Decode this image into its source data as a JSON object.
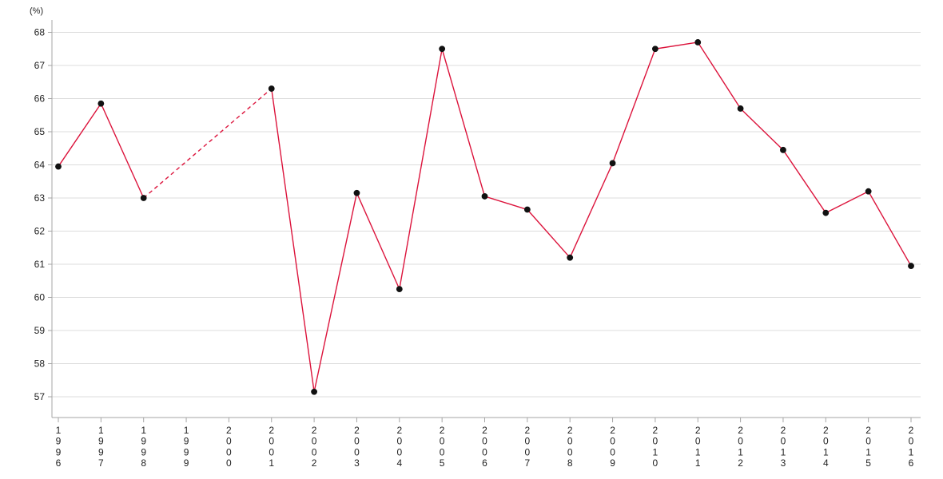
{
  "chart_data": {
    "type": "line",
    "title": "",
    "xlabel": "",
    "ylabel": "(%)",
    "categories": [
      "1996",
      "1997",
      "1998",
      "1999",
      "2000",
      "2001",
      "2002",
      "2003",
      "2004",
      "2005",
      "2006",
      "2007",
      "2008",
      "2009",
      "2010",
      "2011",
      "2012",
      "2013",
      "2014",
      "2015",
      "2016"
    ],
    "series": [
      {
        "name": "percentage",
        "values": [
          63.95,
          65.85,
          63.0,
          null,
          null,
          66.3,
          57.15,
          63.15,
          60.25,
          67.5,
          63.05,
          62.65,
          61.2,
          64.05,
          67.5,
          67.7,
          65.7,
          64.45,
          62.55,
          63.2,
          60.95
        ]
      }
    ],
    "missing_categories": [
      "1999",
      "2000"
    ],
    "gap_segment_style": "dashed",
    "yticks": [
      57,
      58,
      59,
      60,
      61,
      62,
      63,
      64,
      65,
      66,
      67,
      68
    ],
    "ylim": [
      57,
      68
    ],
    "grid": "horizontal",
    "legend": "none",
    "colors": {
      "line": "#dc143c",
      "marker": "#111111",
      "gridline": "#dcdcdc",
      "axis": "#a6a6a6",
      "text": "#222222"
    }
  }
}
